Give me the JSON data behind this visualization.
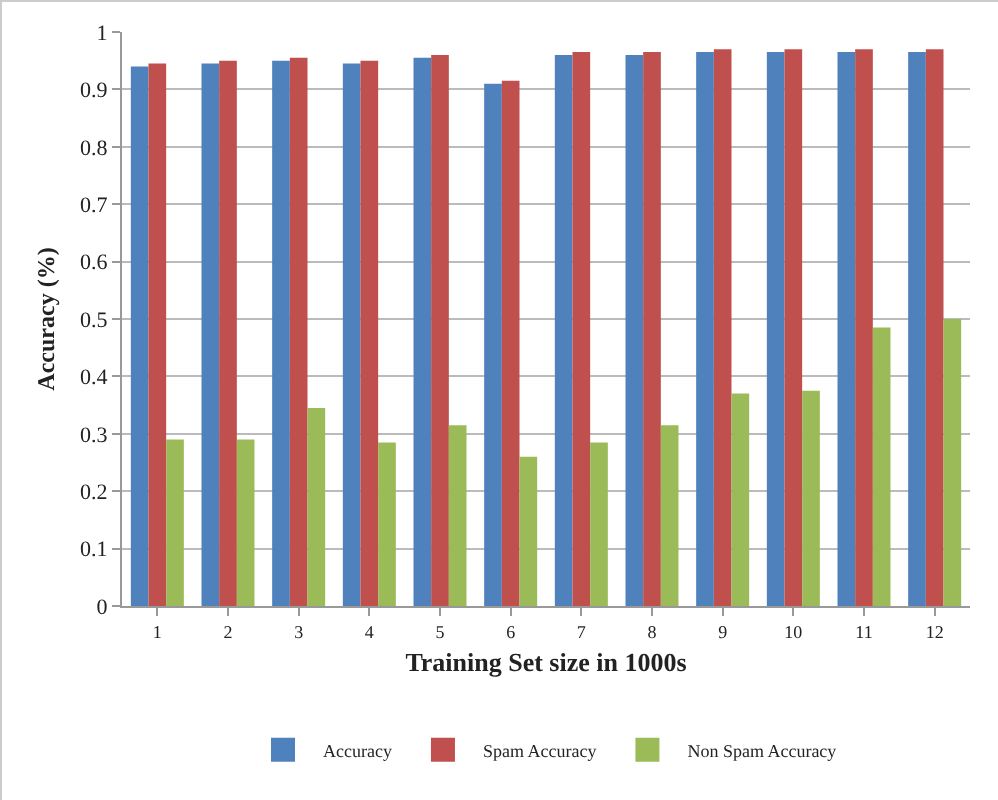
{
  "chart_data": {
    "type": "bar",
    "xlabel": "Training Set size in 1000s",
    "ylabel": "Accuracy (%)",
    "categories": [
      "1",
      "2",
      "3",
      "4",
      "5",
      "6",
      "7",
      "8",
      "9",
      "10",
      "11",
      "12"
    ],
    "series": [
      {
        "name": "Accuracy",
        "color": "#4f81bd",
        "values": [
          0.94,
          0.945,
          0.95,
          0.945,
          0.955,
          0.91,
          0.96,
          0.96,
          0.965,
          0.965,
          0.965,
          0.965
        ]
      },
      {
        "name": "Spam Accuracy",
        "color": "#c0504d",
        "values": [
          0.945,
          0.95,
          0.955,
          0.95,
          0.96,
          0.915,
          0.965,
          0.965,
          0.97,
          0.97,
          0.97,
          0.97
        ]
      },
      {
        "name": "Non Spam Accuracy",
        "color": "#9bbb59",
        "values": [
          0.29,
          0.29,
          0.345,
          0.285,
          0.315,
          0.26,
          0.285,
          0.315,
          0.37,
          0.375,
          0.485,
          0.5
        ]
      }
    ],
    "ylim": [
      0,
      1
    ],
    "yticks": [
      0,
      0.1,
      0.2,
      0.3,
      0.4,
      0.5,
      0.6,
      0.7,
      0.8,
      0.9,
      1
    ],
    "grid": "y",
    "legend": "bottom"
  }
}
